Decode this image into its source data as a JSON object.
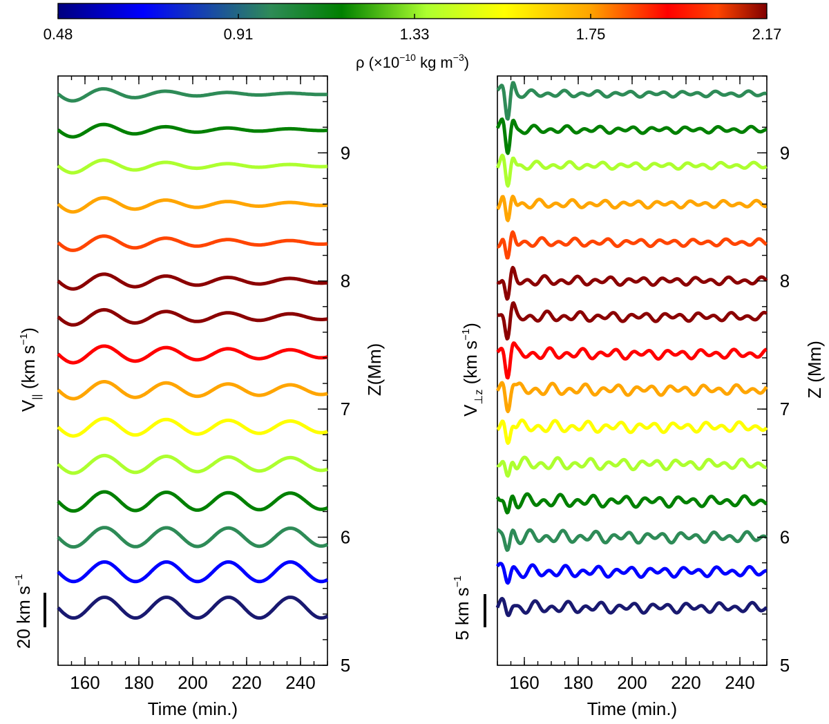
{
  "colorbar": {
    "ticks": [
      "0.48",
      "0.91",
      "1.33",
      "1.75",
      "2.17"
    ],
    "tick_values": [
      0.48,
      0.91,
      1.33,
      1.75,
      2.17
    ],
    "range": [
      0.48,
      2.17
    ],
    "label": "ρ (×10",
    "label_exp": "−10",
    "label_unit": " kg m",
    "label_unit_exp": "−3",
    "label_close": ")",
    "colors": [
      "#00007f",
      "#0000ff",
      "#2e8b57",
      "#008000",
      "#adff2f",
      "#ffff00",
      "#ffa500",
      "#ff0000",
      "#ff4500",
      "#800000"
    ]
  },
  "chart_data": [
    {
      "type": "line",
      "panel": "left",
      "xlabel": "Time (min.)",
      "ylabel": "V",
      "ylabel_sub": "||",
      "ylabel_unit": " (km s",
      "ylabel_unit_exp": "−1",
      "ylabel_close": ")",
      "right_label": "Z(Mm)",
      "xlim": [
        150,
        250
      ],
      "xticks": [
        "160",
        "180",
        "200",
        "220",
        "240"
      ],
      "xtick_values": [
        160,
        180,
        200,
        220,
        240
      ],
      "zlim": [
        5,
        9.6
      ],
      "zticks": [
        "5",
        "6",
        "7",
        "8",
        "9"
      ],
      "ztick_values": [
        5,
        6,
        7,
        8,
        9
      ],
      "scale_bar_label": "20 km s",
      "scale_bar_exp": "−1",
      "scale_bar_kms": 20,
      "series": [
        {
          "z": 5.45,
          "color": "#191970",
          "amp": 0.9,
          "period": 23,
          "decay": 0,
          "phase": 0.5
        },
        {
          "z": 5.73,
          "color": "#0000ff",
          "amp": 0.85,
          "period": 23,
          "decay": 0,
          "phase": 0.5
        },
        {
          "z": 6.0,
          "color": "#2e8b57",
          "amp": 0.85,
          "period": 23,
          "decay": 0.001,
          "phase": 0.5
        },
        {
          "z": 6.28,
          "color": "#008000",
          "amp": 0.85,
          "period": 23,
          "decay": 0.002,
          "phase": 0.5
        },
        {
          "z": 6.57,
          "color": "#adff2f",
          "amp": 0.8,
          "period": 23,
          "decay": 0.004,
          "phase": 0.5
        },
        {
          "z": 6.86,
          "color": "#ffff00",
          "amp": 0.8,
          "period": 23,
          "decay": 0.005,
          "phase": 0.5
        },
        {
          "z": 7.15,
          "color": "#ffa500",
          "amp": 0.8,
          "period": 23,
          "decay": 0.007,
          "phase": 0.5
        },
        {
          "z": 7.43,
          "color": "#ff0000",
          "amp": 0.8,
          "period": 23,
          "decay": 0.009,
          "phase": 0.5
        },
        {
          "z": 7.72,
          "color": "#8b0000",
          "amp": 0.75,
          "period": 23,
          "decay": 0.012,
          "phase": 0.5
        },
        {
          "z": 8.0,
          "color": "#8b0000",
          "amp": 0.75,
          "period": 23,
          "decay": 0.014,
          "phase": 0.5
        },
        {
          "z": 8.3,
          "color": "#ff4500",
          "amp": 0.75,
          "period": 23,
          "decay": 0.017,
          "phase": 0.5
        },
        {
          "z": 8.6,
          "color": "#ffa500",
          "amp": 0.75,
          "period": 23,
          "decay": 0.019,
          "phase": 0.5
        },
        {
          "z": 8.9,
          "color": "#adff2f",
          "amp": 0.7,
          "period": 23,
          "decay": 0.022,
          "phase": 0.5
        },
        {
          "z": 9.18,
          "color": "#008000",
          "amp": 0.7,
          "period": 23,
          "decay": 0.024,
          "phase": 0.5
        },
        {
          "z": 9.46,
          "color": "#2e8b57",
          "amp": 0.7,
          "period": 23,
          "decay": 0.027,
          "phase": 0.5
        }
      ]
    },
    {
      "type": "line",
      "panel": "right",
      "xlabel": "Time (min.)",
      "ylabel": "V",
      "ylabel_sub": "⊥z",
      "ylabel_unit": " (km s",
      "ylabel_unit_exp": "−1",
      "ylabel_close": ")",
      "right_label": "Z (Mm)",
      "xlim": [
        150,
        250
      ],
      "xticks": [
        "160",
        "180",
        "200",
        "220",
        "240"
      ],
      "xtick_values": [
        160,
        180,
        200,
        220,
        240
      ],
      "zlim": [
        5,
        9.6
      ],
      "zticks": [
        "5",
        "6",
        "7",
        "8",
        "9"
      ],
      "ztick_values": [
        5,
        6,
        7,
        8,
        9
      ],
      "scale_bar_label": "5 km s",
      "scale_bar_exp": "−1",
      "scale_bar_kms": 5,
      "series": [
        {
          "z": 5.45,
          "color": "#191970",
          "amp": 0.7,
          "spike": 1.0
        },
        {
          "z": 5.73,
          "color": "#0000ff",
          "amp": 0.7,
          "spike": 1.2
        },
        {
          "z": 6.0,
          "color": "#2e8b57",
          "amp": 0.75,
          "spike": 1.6
        },
        {
          "z": 6.28,
          "color": "#008000",
          "amp": 0.75,
          "spike": 1.8
        },
        {
          "z": 6.57,
          "color": "#adff2f",
          "amp": 0.7,
          "spike": 2.0
        },
        {
          "z": 6.86,
          "color": "#ffff00",
          "amp": 0.7,
          "spike": 2.2
        },
        {
          "z": 7.15,
          "color": "#ffa500",
          "amp": 0.7,
          "spike": 2.4
        },
        {
          "z": 7.43,
          "color": "#ff0000",
          "amp": 0.65,
          "spike": 2.6
        },
        {
          "z": 7.72,
          "color": "#8b0000",
          "amp": 0.6,
          "spike": 2.7
        },
        {
          "z": 8.0,
          "color": "#8b0000",
          "amp": 0.55,
          "spike": 2.8
        },
        {
          "z": 8.3,
          "color": "#ff4500",
          "amp": 0.5,
          "spike": 2.9
        },
        {
          "z": 8.6,
          "color": "#ffa500",
          "amp": 0.5,
          "spike": 3.0
        },
        {
          "z": 8.9,
          "color": "#adff2f",
          "amp": 0.45,
          "spike": 3.1
        },
        {
          "z": 9.18,
          "color": "#008000",
          "amp": 0.45,
          "spike": 3.2
        },
        {
          "z": 9.46,
          "color": "#2e8b57",
          "amp": 0.4,
          "spike": 3.4
        }
      ]
    }
  ]
}
